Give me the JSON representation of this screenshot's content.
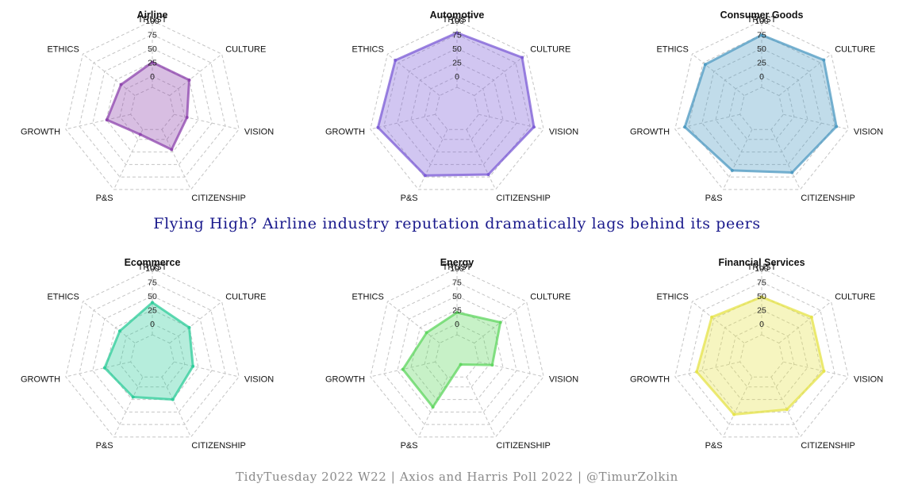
{
  "title": "Flying High? Airline industry reputation dramatically lags behind its peers",
  "caption": "TidyTuesday 2022 W22 | Axios and Harris Poll 2022 | @TimurZolkin",
  "chart_data": [
    {
      "type": "radar",
      "title": "Airline",
      "axes": [
        "TRUST",
        "CULTURE",
        "VISION",
        "CITIZENSHIP",
        "P&S",
        "GROWTH",
        "ETHICS"
      ],
      "ticks": [
        "0",
        "25",
        "50",
        "75",
        "100"
      ],
      "rmin": -60,
      "rmax": 100,
      "values": [
        25,
        25,
        4,
        20,
        -10,
        24,
        12
      ],
      "color": "#8e44ad"
    },
    {
      "type": "radar",
      "title": "Automotive",
      "axes": [
        "TRUST",
        "CULTURE",
        "VISION",
        "CITIZENSHIP",
        "P&S",
        "GROWTH",
        "ETHICS"
      ],
      "ticks": [
        "0",
        "25",
        "50",
        "75",
        "100"
      ],
      "rmin": -60,
      "rmax": 100,
      "values": [
        78,
        90,
        82,
        70,
        72,
        86,
        82
      ],
      "color": "#7b5bd6"
    },
    {
      "type": "radar",
      "title": "Consumer Goods",
      "axes": [
        "TRUST",
        "CULTURE",
        "VISION",
        "CITIZENSHIP",
        "P&S",
        "GROWTH",
        "ETHICS"
      ],
      "ticks": [
        "0",
        "25",
        "50",
        "75",
        "100"
      ],
      "rmin": -60,
      "rmax": 100,
      "values": [
        74,
        83,
        78,
        66,
        62,
        82,
        70
      ],
      "color": "#4d9ac2"
    },
    {
      "type": "radar",
      "title": "Ecommerce",
      "axes": [
        "TRUST",
        "CULTURE",
        "VISION",
        "CITIZENSHIP",
        "P&S",
        "GROWTH",
        "ETHICS"
      ],
      "ticks": [
        "0",
        "25",
        "50",
        "75",
        "100"
      ],
      "rmin": -60,
      "rmax": 100,
      "values": [
        38,
        25,
        15,
        25,
        20,
        28,
        15
      ],
      "color": "#2ecc9a"
    },
    {
      "type": "radar",
      "title": "Energy",
      "axes": [
        "TRUST",
        "CULTURE",
        "VISION",
        "CITIZENSHIP",
        "P&S",
        "GROWTH",
        "ETHICS"
      ],
      "ticks": [
        "0",
        "25",
        "50",
        "75",
        "100"
      ],
      "rmin": -60,
      "rmax": 100,
      "values": [
        20,
        40,
        5,
        -45,
        40,
        40,
        10
      ],
      "color": "#5fd65f"
    },
    {
      "type": "radar",
      "title": "Financial Services",
      "axes": [
        "TRUST",
        "CULTURE",
        "VISION",
        "CITIZENSHIP",
        "P&S",
        "GROWTH",
        "ETHICS"
      ],
      "ticks": [
        "0",
        "25",
        "50",
        "75",
        "100"
      ],
      "rmin": -60,
      "rmax": 100,
      "values": [
        48,
        55,
        55,
        45,
        55,
        60,
        55
      ],
      "color": "#e6e34a"
    }
  ]
}
